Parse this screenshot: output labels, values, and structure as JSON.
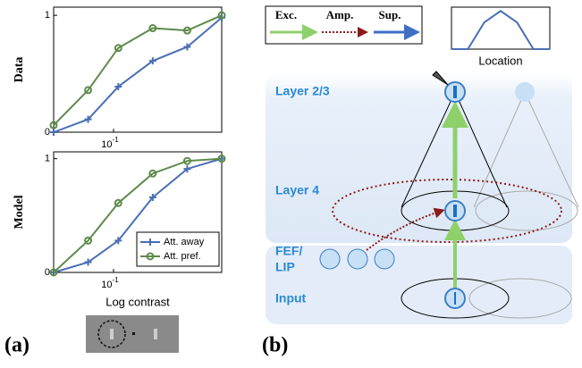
{
  "chart_data": [
    {
      "type": "line",
      "y_label": "Data",
      "log_x": true,
      "x": [
        0.03,
        0.06,
        0.11,
        0.22,
        0.44,
        0.88
      ],
      "xlim": [
        0.03,
        0.88
      ],
      "xticks": [
        {
          "value": 0.1,
          "label": "10",
          "superscript": "-1"
        }
      ],
      "ylim": [
        0,
        1.07
      ],
      "yticks": [
        0,
        1
      ],
      "series": [
        {
          "name": "Att. away",
          "color": "#4a6fb5",
          "marker": "+",
          "values": [
            0,
            0.11,
            0.39,
            0.61,
            0.73,
            0.98
          ]
        },
        {
          "name": "Att. pref.",
          "color": "#5d8a4a",
          "marker": "o",
          "values": [
            0.06,
            0.36,
            0.72,
            0.89,
            0.87,
            1.0
          ]
        }
      ]
    },
    {
      "type": "line",
      "y_label": "Model",
      "x_label": "Log contrast",
      "log_x": true,
      "x": [
        0.03,
        0.06,
        0.11,
        0.22,
        0.44,
        0.88
      ],
      "xlim": [
        0.03,
        0.88
      ],
      "xticks": [
        {
          "value": 0.1,
          "label": "10",
          "superscript": "-1"
        }
      ],
      "ylim": [
        0,
        1.06
      ],
      "yticks": [
        0,
        1
      ],
      "legend": "lower right",
      "series": [
        {
          "name": "Att. away",
          "color": "#4a6fb5",
          "marker": "+",
          "values": [
            0,
            0.09,
            0.28,
            0.66,
            0.91,
            1.0
          ]
        },
        {
          "name": "Att. pref.",
          "color": "#5d8a4a",
          "marker": "o",
          "values": [
            0,
            0.28,
            0.61,
            0.87,
            0.98,
            1.0
          ]
        }
      ]
    },
    {
      "type": "line",
      "x_label": "Location",
      "x": [
        0,
        1,
        2,
        3,
        4,
        5,
        6
      ],
      "xlim": [
        0,
        6
      ],
      "ylim": [
        0,
        1.1
      ],
      "color": "#4a6fb5",
      "values": [
        0,
        0,
        0.7,
        1,
        0.7,
        0,
        0
      ]
    }
  ],
  "panels": [
    "(a)",
    "(b)"
  ],
  "diagram": {
    "legend": [
      "Exc.",
      "Amp.",
      "Sup."
    ],
    "layers": [
      "Layer 2/3",
      "Layer 4"
    ],
    "fef_lip": [
      "FEF/",
      "LIP"
    ],
    "input": "Input"
  }
}
